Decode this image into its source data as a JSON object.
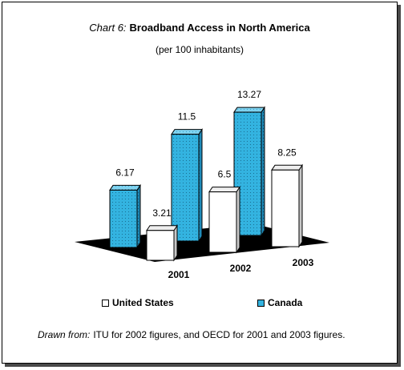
{
  "chart_data": {
    "type": "bar",
    "title_prefix": "Chart 6:",
    "title": "Broadband Access in North America",
    "subtitle": "(per 100 inhabitants)",
    "categories": [
      "2001",
      "2002",
      "2003"
    ],
    "series": [
      {
        "name": "United States",
        "values": [
          3.21,
          6.5,
          8.25
        ],
        "color": "#ffffff"
      },
      {
        "name": "Canada",
        "values": [
          6.17,
          11.5,
          13.27
        ],
        "color": "#33b3e0"
      }
    ],
    "data_labels": [
      [
        "3.21",
        "6.5",
        "8.25"
      ],
      [
        "6.17",
        "11.5",
        "13.27"
      ]
    ],
    "grid": false,
    "legend_position": "bottom",
    "floor_color": "#000000"
  },
  "source_note": {
    "label": "Drawn from:",
    "text": "ITU for 2002 figures, and OECD for 2001 and 2003 figures."
  }
}
